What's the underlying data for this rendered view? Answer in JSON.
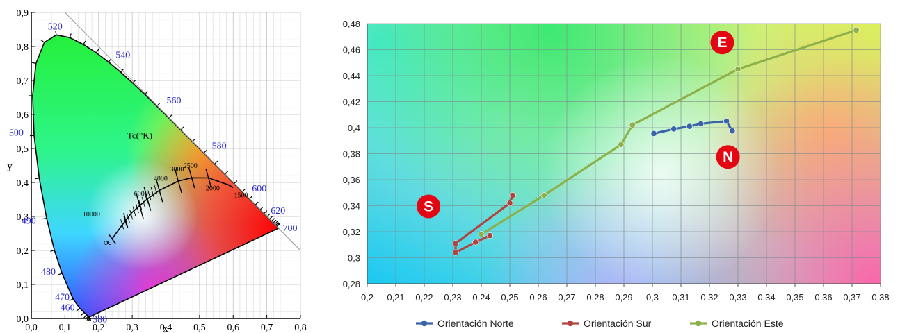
{
  "chart_data": [
    {
      "type": "scatter",
      "title": "",
      "xlabel": "x",
      "ylabel": "y",
      "xlim": [
        0.0,
        0.8
      ],
      "ylim": [
        0.0,
        0.9
      ],
      "grid": true,
      "x_ticks": [
        "0,0",
        "0,1",
        "0,2",
        "0,3",
        "0,4",
        "0,5",
        "0,6",
        "0,7",
        "0,8"
      ],
      "y_ticks": [
        "0,0",
        "0,1",
        "0,2",
        "0,3",
        "0,4",
        "0,5",
        "0,6",
        "0,7",
        "0,8",
        "0,9"
      ],
      "spectral_locus_labels": [
        {
          "nm": "380",
          "x": 0.174,
          "y": 0.005
        },
        {
          "nm": "460",
          "x": 0.144,
          "y": 0.03
        },
        {
          "nm": "470",
          "x": 0.124,
          "y": 0.058
        },
        {
          "nm": "480",
          "x": 0.091,
          "y": 0.133
        },
        {
          "nm": "490",
          "x": 0.045,
          "y": 0.295
        },
        {
          "nm": "500",
          "x": 0.008,
          "y": 0.538
        },
        {
          "nm": "520",
          "x": 0.074,
          "y": 0.834
        },
        {
          "nm": "540",
          "x": 0.23,
          "y": 0.754
        },
        {
          "nm": "560",
          "x": 0.373,
          "y": 0.624
        },
        {
          "nm": "580",
          "x": 0.512,
          "y": 0.487
        },
        {
          "nm": "600",
          "x": 0.627,
          "y": 0.373
        },
        {
          "nm": "620",
          "x": 0.691,
          "y": 0.308
        },
        {
          "nm": "700",
          "x": 0.735,
          "y": 0.265
        }
      ],
      "planckian_locus_label": "Tc(°K)",
      "cct_labels": [
        {
          "label": "10000",
          "x": 0.281,
          "y": 0.288
        },
        {
          "label": "6000",
          "x": 0.322,
          "y": 0.332
        },
        {
          "label": "4000",
          "x": 0.38,
          "y": 0.377
        },
        {
          "label": "3000",
          "x": 0.437,
          "y": 0.404
        },
        {
          "label": "2500",
          "x": 0.477,
          "y": 0.414
        },
        {
          "label": "2000",
          "x": 0.527,
          "y": 0.413
        },
        {
          "label": "1500",
          "x": 0.586,
          "y": 0.393
        },
        {
          "label": "∞",
          "x": 0.24,
          "y": 0.234
        }
      ]
    },
    {
      "type": "line",
      "title": "",
      "xlabel": "",
      "ylabel": "",
      "xlim": [
        0.2,
        0.38
      ],
      "ylim": [
        0.28,
        0.48
      ],
      "grid": true,
      "x_ticks": [
        "0,2",
        "0,21",
        "0,22",
        "0,23",
        "0,24",
        "0,25",
        "0,26",
        "0,27",
        "0,28",
        "0,29",
        "0,3",
        "0,31",
        "0,32",
        "0,33",
        "0,34",
        "0,35",
        "0,36",
        "0,37",
        "0,38"
      ],
      "y_ticks": [
        "0,28",
        "0,3",
        "0,32",
        "0,34",
        "0,36",
        "0,38",
        "0,4",
        "0,42",
        "0,44",
        "0,46",
        "0,48"
      ],
      "legend_position": "bottom",
      "series": [
        {
          "name": "Orientación Norte",
          "color": "#3a64a8",
          "points": [
            [
              0.3005,
              0.3955
            ],
            [
              0.3075,
              0.399
            ],
            [
              0.313,
              0.401
            ],
            [
              0.317,
              0.403
            ],
            [
              0.326,
              0.405
            ],
            [
              0.328,
              0.3975
            ]
          ]
        },
        {
          "name": "Orientación Sur",
          "color": "#b0453f",
          "points": [
            [
              0.251,
              0.348
            ],
            [
              0.25,
              0.342
            ],
            [
              0.231,
              0.311
            ],
            [
              0.231,
              0.304
            ],
            [
              0.238,
              0.312
            ],
            [
              0.243,
              0.317
            ]
          ]
        },
        {
          "name": "Orientación Este",
          "color": "#8db04a",
          "points": [
            [
              0.24,
              0.318
            ],
            [
              0.262,
              0.348
            ],
            [
              0.289,
              0.387
            ],
            [
              0.293,
              0.402
            ],
            [
              0.33,
              0.445
            ],
            [
              0.3715,
              0.475
            ]
          ]
        }
      ],
      "annotations": [
        {
          "text": "E",
          "x": 0.3245,
          "y": 0.4655,
          "color": "#e30613"
        },
        {
          "text": "N",
          "x": 0.3265,
          "y": 0.3775,
          "color": "#e30613"
        },
        {
          "text": "S",
          "x": 0.2215,
          "y": 0.3395,
          "color": "#e30613"
        }
      ]
    }
  ]
}
